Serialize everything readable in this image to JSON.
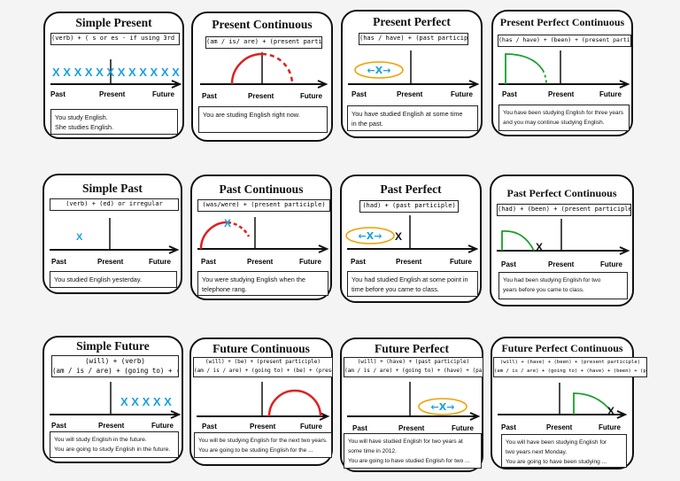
{
  "colors": {
    "blue": "#1aa0e0",
    "red": "#e02020",
    "green": "#1aa02a",
    "orange": "#f0a000"
  },
  "axis": {
    "past": "Past",
    "present": "Present",
    "future": "Future",
    "last_past": "Past",
    "last_present": "Present"
  },
  "cards": [
    {
      "title": "Simple Present",
      "formula": [
        "(verb) + ( s or es - if using 3rd person)"
      ],
      "marks": "X X X X X X X X X X X X",
      "example": [
        "You study English.",
        "She studies English."
      ]
    },
    {
      "title": "Present Continuous",
      "formula": [
        "(am / is/ are) + (present participle)"
      ],
      "example": [
        "You are studing English right now."
      ]
    },
    {
      "title": "Present Perfect",
      "formula": [
        "(has / have) + (past participle)"
      ],
      "arrow": "←X→",
      "example": [
        "You have studied English at some time",
        "in the past."
      ]
    },
    {
      "title": "Present Perfect Continuous",
      "formula": [
        "(has / have) + (been) + (present participle)"
      ],
      "example": [
        "You have been studying English for three years",
        "and you may continue studying English."
      ]
    },
    {
      "title": "Simple Past",
      "formula": [
        "(verb) + (ed) or irregular"
      ],
      "mark": "X",
      "example": [
        "You studied English yesterday."
      ]
    },
    {
      "title": "Past Continuous",
      "formula": [
        "(was/were) + (present participle)"
      ],
      "mark": "X",
      "example": [
        "You were studying English when the",
        "telephone rang."
      ]
    },
    {
      "title": "Past Perfect",
      "formula": [
        "(had) + (past participle)"
      ],
      "arrow": "←X→",
      "mark": "X",
      "example": [
        "You had studied English at some point in",
        "time before you came to class."
      ]
    },
    {
      "title": "Past Perfect Continuous",
      "formula": [
        "(had) + (been) + (present participle)"
      ],
      "mark": "X",
      "example": [
        "You had been studying English for two",
        "years before you came to class."
      ]
    },
    {
      "title": "Simple Future",
      "formula": [
        "(will) + (verb)",
        "(am / is / are) + (going to) + (verb)"
      ],
      "marks": "X X X X X",
      "example": [
        "You will study English in the future.",
        "You are going to study English in the future."
      ]
    },
    {
      "title": "Future Continuous",
      "formula": [
        "(will) + (be) + (present participle)",
        "(am / is / are) + (going to) + (be) + (present participle)"
      ],
      "example": [
        "You will be studying English for the next two years.",
        "You are going to be studing English for the ..."
      ]
    },
    {
      "title": "Future Perfect",
      "formula": [
        "(will) + (have) + (past participle)",
        "(am / is / are) + (going to) + (have) + (past participle)"
      ],
      "arrow": "←X→",
      "example": [
        "You will have studied English for two years at",
        "some time in 2012.",
        "You are going to have studied English for two ..."
      ]
    },
    {
      "title": "Future Perfect Continuous",
      "formula": [
        "(will) + (have) + (been) + (present participle)",
        "(am / is / are) + (going to) + (have) + (been) + (present participle)"
      ],
      "mark": "X",
      "example": [
        "You will have been studying English for",
        "two years next Monday.",
        "You are going to have been studying ..."
      ]
    }
  ]
}
